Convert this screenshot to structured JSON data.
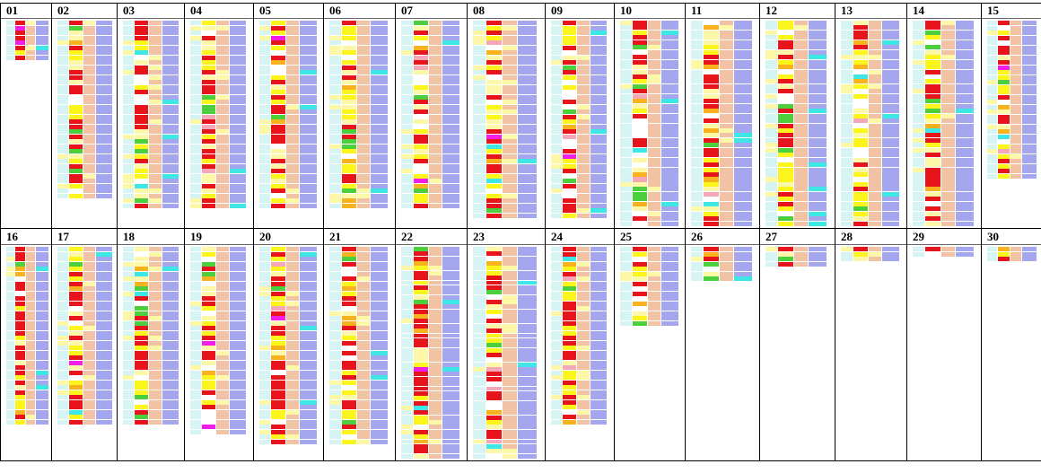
{
  "chart_data": {
    "type": "heatmap",
    "title": "",
    "panels": [
      {
        "label": "01",
        "rows": 8
      },
      {
        "label": "02",
        "rows": 36
      },
      {
        "label": "03",
        "rows": 38
      },
      {
        "label": "04",
        "rows": 38
      },
      {
        "label": "05",
        "rows": 38
      },
      {
        "label": "06",
        "rows": 38
      },
      {
        "label": "07",
        "rows": 38
      },
      {
        "label": "08",
        "rows": 40
      },
      {
        "label": "09",
        "rows": 40
      },
      {
        "label": "10",
        "rows": 42
      },
      {
        "label": "11",
        "rows": 42
      },
      {
        "label": "12",
        "rows": 42
      },
      {
        "label": "13",
        "rows": 42
      },
      {
        "label": "14",
        "rows": 42
      },
      {
        "label": "15",
        "rows": 32
      },
      {
        "label": "16",
        "rows": 36
      },
      {
        "label": "17",
        "rows": 36
      },
      {
        "label": "18",
        "rows": 36
      },
      {
        "label": "19",
        "rows": 38
      },
      {
        "label": "20",
        "rows": 40
      },
      {
        "label": "21",
        "rows": 40
      },
      {
        "label": "22",
        "rows": 44
      },
      {
        "label": "23",
        "rows": 44
      },
      {
        "label": "24",
        "rows": 36
      },
      {
        "label": "25",
        "rows": 16
      },
      {
        "label": "26",
        "rows": 7
      },
      {
        "label": "27",
        "rows": 4
      },
      {
        "label": "28",
        "rows": 3
      },
      {
        "label": "29",
        "rows": 2
      },
      {
        "label": "30",
        "rows": 3
      }
    ],
    "colors": {
      "red": "#e8141c",
      "yellow": "#fcf51c",
      "light_yellow": "#fdf7a8",
      "orange": "#f7b21e",
      "green": "#4ccf3c",
      "cyan": "#3ee6e6",
      "magenta": "#f01ee8",
      "pink": "#f3a7b9",
      "light_cyan": "#d6f4f4",
      "peach": "#f2c2a4",
      "lavender": "#a5a7ee",
      "white": "#ffffff"
    }
  }
}
